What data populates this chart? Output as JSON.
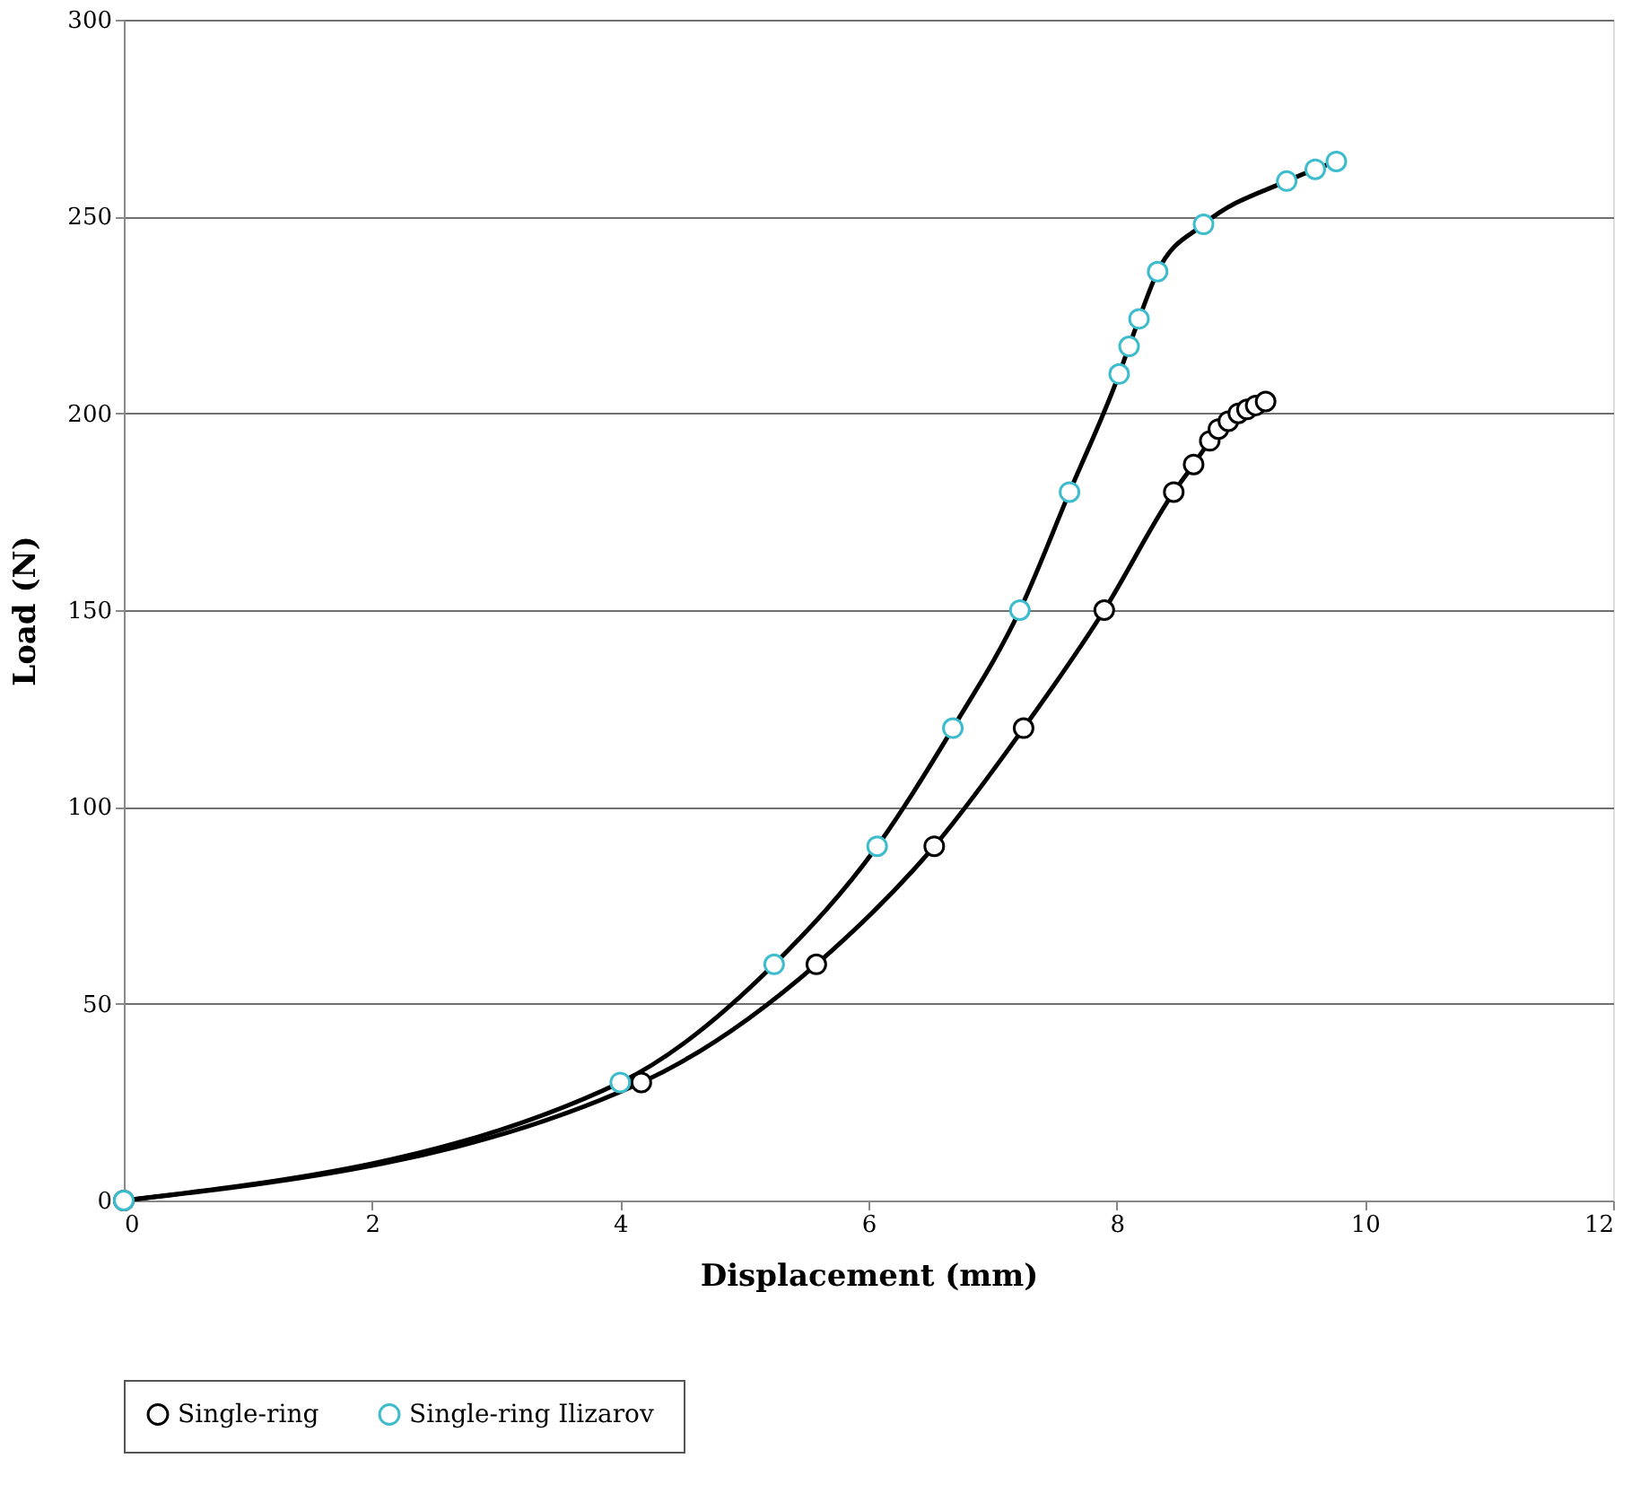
{
  "chart_data": {
    "type": "line",
    "xlabel": "Displacement  (mm)",
    "ylabel": "Load  (N)",
    "xlim": [
      0,
      12
    ],
    "xticks": [
      0,
      2,
      4,
      6,
      8,
      10,
      12
    ],
    "ylim": [
      0,
      300
    ],
    "yticks": [
      0,
      50,
      100,
      150,
      200,
      250,
      300
    ],
    "grid": "y",
    "legend": "bottom",
    "marker": "circle",
    "line_style": "solid",
    "series": [
      {
        "name": "Single-ring",
        "color": "#000000",
        "x": [
          0,
          4.17,
          5.58,
          6.53,
          7.25,
          7.9,
          8.46,
          8.62,
          8.75,
          8.82,
          8.9,
          8.98,
          9.05,
          9.12,
          9.2
        ],
        "values": [
          0,
          30,
          60,
          90,
          120,
          150,
          180,
          187,
          193,
          196,
          198,
          200,
          201,
          202,
          203
        ]
      },
      {
        "name": "Single-ring  Ilizarov",
        "color": "#3cbccc",
        "x": [
          0,
          4.0,
          5.24,
          6.07,
          6.68,
          7.22,
          7.62,
          8.02,
          8.1,
          8.18,
          8.33,
          8.7,
          9.37,
          9.6,
          9.77
        ],
        "values": [
          0,
          30,
          60,
          90,
          120,
          150,
          180,
          210,
          217,
          224,
          236,
          248,
          259,
          262,
          264
        ]
      }
    ]
  }
}
